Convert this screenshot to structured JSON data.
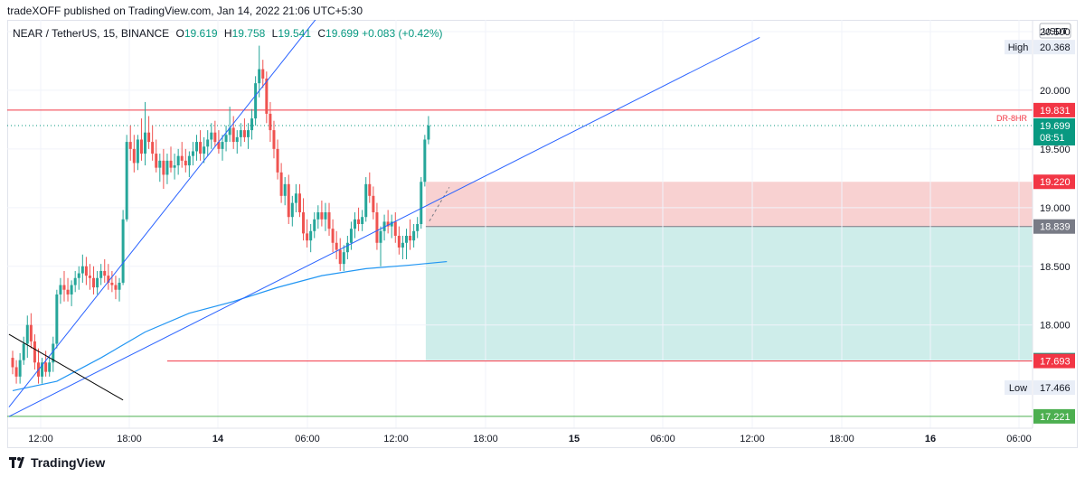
{
  "publisher": {
    "text": "tradeXOFF published on TradingView.com, Jan 14, 2022 21:06 UTC+5:30"
  },
  "legend": {
    "symbol": "NEAR / TetherUS, 15, BINANCE",
    "open_label": "O",
    "open": "19.619",
    "high_label": "H",
    "high": "19.758",
    "low_label": "L",
    "low": "19.541",
    "close_label": "C",
    "close": "19.699",
    "change": "+0.083 (+0.42%)"
  },
  "currency_badge": "USDT",
  "brand": "TradingView",
  "colors": {
    "up": "#26a69a",
    "down": "#ef5350",
    "trendline": "#2962ff",
    "ma": "#2196f3",
    "resistance": "#f23645",
    "support": "#4caf50",
    "stop_zone": "#f7c9c9",
    "target_zone": "#c9ebe8"
  },
  "chart_data": {
    "type": "candlestick",
    "x_axis": {
      "ticks": [
        "12:00",
        "18:00",
        "14",
        "06:00",
        "12:00",
        "18:00",
        "15",
        "06:00",
        "12:00",
        "18:00",
        "16",
        "06:00"
      ],
      "bold_ticks": [
        "14",
        "15",
        "16"
      ]
    },
    "y_axis": {
      "ticks": [
        "20.500",
        "20.000",
        "19.500",
        "19.000",
        "18.500",
        "18.000"
      ],
      "range": [
        17.12,
        20.6
      ],
      "position": "right"
    },
    "price_labels": [
      {
        "text": "19.831",
        "value": 19.831,
        "color": "#f23645"
      },
      {
        "text": "19.699",
        "value": 19.699,
        "color": "#089981",
        "countdown": "08:51"
      },
      {
        "text": "19.220",
        "value": 19.22,
        "color": "#f23645"
      },
      {
        "text": "18.839",
        "value": 18.839,
        "color": "#787b86"
      },
      {
        "text": "17.700",
        "value": 17.7,
        "color": "#089981"
      },
      {
        "text": "17.693",
        "value": 17.693,
        "color": "#f23645"
      },
      {
        "text": "17.221",
        "value": 17.221,
        "color": "#4caf50"
      }
    ],
    "range_labels": [
      {
        "name": "High",
        "text": "20.368",
        "value": 20.368
      },
      {
        "name": "Low",
        "text": "17.466",
        "value": 17.466
      }
    ],
    "horizontal_lines": [
      {
        "value": 19.831,
        "label": "DR-8HR",
        "color": "#f23645",
        "style": "solid"
      },
      {
        "value": 19.699,
        "color": "#089981",
        "style": "dotted"
      },
      {
        "value": 17.693,
        "color": "#f23645",
        "style": "solid",
        "start_bar": 42
      },
      {
        "value": 17.221,
        "color": "#4caf50",
        "style": "solid"
      }
    ],
    "position": {
      "side": "long",
      "start_bar": 113,
      "entry": 18.839,
      "stop": 19.22,
      "target": 17.7
    },
    "trendlines": [
      {
        "from": [
          -1,
          17.3
        ],
        "to": [
          110,
          21.7
        ],
        "color": "#2962ff"
      },
      {
        "from": [
          -1,
          17.22
        ],
        "to": [
          203,
          20.45
        ],
        "color": "#2962ff"
      },
      {
        "from": [
          -1,
          17.92
        ],
        "to": [
          30,
          17.36
        ],
        "color": "#000000"
      }
    ],
    "moving_average": {
      "color": "#2196f3",
      "points": [
        [
          0,
          17.44
        ],
        [
          12,
          17.52
        ],
        [
          24,
          17.72
        ],
        [
          36,
          17.94
        ],
        [
          48,
          18.1
        ],
        [
          60,
          18.2
        ],
        [
          72,
          18.32
        ],
        [
          84,
          18.42
        ],
        [
          96,
          18.48
        ],
        [
          108,
          18.51
        ],
        [
          118,
          18.54
        ]
      ]
    },
    "candles": [
      [
        17.72,
        17.78,
        17.58,
        17.64
      ],
      [
        17.64,
        17.7,
        17.5,
        17.56
      ],
      [
        17.56,
        17.76,
        17.5,
        17.7
      ],
      [
        17.7,
        17.9,
        17.66,
        17.84
      ],
      [
        17.84,
        18.08,
        17.72,
        18.0
      ],
      [
        18.0,
        18.1,
        17.8,
        17.86
      ],
      [
        17.86,
        17.92,
        17.62,
        17.68
      ],
      [
        17.68,
        17.8,
        17.5,
        17.56
      ],
      [
        17.56,
        17.72,
        17.5,
        17.68
      ],
      [
        17.68,
        17.78,
        17.56,
        17.6
      ],
      [
        17.6,
        17.72,
        17.56,
        17.68
      ],
      [
        17.68,
        17.9,
        17.6,
        17.84
      ],
      [
        17.84,
        18.3,
        17.8,
        18.26
      ],
      [
        18.26,
        18.4,
        18.18,
        18.34
      ],
      [
        18.34,
        18.46,
        18.2,
        18.3
      ],
      [
        18.3,
        18.4,
        18.2,
        18.26
      ],
      [
        18.26,
        18.38,
        18.16,
        18.34
      ],
      [
        18.34,
        18.46,
        18.28,
        18.4
      ],
      [
        18.4,
        18.5,
        18.3,
        18.44
      ],
      [
        18.44,
        18.6,
        18.36,
        18.5
      ],
      [
        18.5,
        18.58,
        18.34,
        18.42
      ],
      [
        18.42,
        18.52,
        18.3,
        18.4
      ],
      [
        18.4,
        18.5,
        18.26,
        18.32
      ],
      [
        18.32,
        18.46,
        18.26,
        18.4
      ],
      [
        18.4,
        18.52,
        18.34,
        18.46
      ],
      [
        18.46,
        18.56,
        18.36,
        18.42
      ],
      [
        18.42,
        18.52,
        18.3,
        18.36
      ],
      [
        18.36,
        18.46,
        18.28,
        18.34
      ],
      [
        18.34,
        18.42,
        18.22,
        18.3
      ],
      [
        18.3,
        18.4,
        18.2,
        18.36
      ],
      [
        18.36,
        18.98,
        18.34,
        18.9
      ],
      [
        18.9,
        19.62,
        18.88,
        19.56
      ],
      [
        19.56,
        19.7,
        19.4,
        19.5
      ],
      [
        19.5,
        19.62,
        19.3,
        19.38
      ],
      [
        19.38,
        19.62,
        19.32,
        19.58
      ],
      [
        19.58,
        19.76,
        19.4,
        19.46
      ],
      [
        19.46,
        19.9,
        19.36,
        19.64
      ],
      [
        19.64,
        19.78,
        19.5,
        19.56
      ],
      [
        19.56,
        19.7,
        19.4,
        19.46
      ],
      [
        19.46,
        19.58,
        19.3,
        19.34
      ],
      [
        19.34,
        19.46,
        19.22,
        19.4
      ],
      [
        19.4,
        19.5,
        19.16,
        19.28
      ],
      [
        19.28,
        19.46,
        19.2,
        19.4
      ],
      [
        19.4,
        19.52,
        19.3,
        19.34
      ],
      [
        19.34,
        19.46,
        19.24,
        19.36
      ],
      [
        19.36,
        19.5,
        19.28,
        19.44
      ],
      [
        19.44,
        19.56,
        19.34,
        19.4
      ],
      [
        19.4,
        19.5,
        19.3,
        19.36
      ],
      [
        19.36,
        19.48,
        19.26,
        19.44
      ],
      [
        19.44,
        19.56,
        19.36,
        19.48
      ],
      [
        19.48,
        19.62,
        19.4,
        19.56
      ],
      [
        19.56,
        19.66,
        19.4,
        19.46
      ],
      [
        19.46,
        19.6,
        19.38,
        19.52
      ],
      [
        19.52,
        19.66,
        19.44,
        19.58
      ],
      [
        19.58,
        19.72,
        19.5,
        19.64
      ],
      [
        19.64,
        19.74,
        19.52,
        19.56
      ],
      [
        19.56,
        19.66,
        19.46,
        19.5
      ],
      [
        19.5,
        19.62,
        19.4,
        19.56
      ],
      [
        19.56,
        19.7,
        19.48,
        19.62
      ],
      [
        19.62,
        19.86,
        19.56,
        19.68
      ],
      [
        19.68,
        19.78,
        19.5,
        19.56
      ],
      [
        19.56,
        19.66,
        19.46,
        19.6
      ],
      [
        19.6,
        19.72,
        19.52,
        19.66
      ],
      [
        19.66,
        19.76,
        19.56,
        19.6
      ],
      [
        19.6,
        19.72,
        19.5,
        19.66
      ],
      [
        19.66,
        19.84,
        19.58,
        19.76
      ],
      [
        19.76,
        20.12,
        19.7,
        20.06
      ],
      [
        20.06,
        20.38,
        19.94,
        20.18
      ],
      [
        20.18,
        20.26,
        20.02,
        20.1
      ],
      [
        20.1,
        20.16,
        19.72,
        19.8
      ],
      [
        19.8,
        19.9,
        19.56,
        19.66
      ],
      [
        19.66,
        19.74,
        19.42,
        19.5
      ],
      [
        19.5,
        19.58,
        19.24,
        19.3
      ],
      [
        19.3,
        19.38,
        19.04,
        19.1
      ],
      [
        19.1,
        19.26,
        19.02,
        19.2
      ],
      [
        19.2,
        19.28,
        18.86,
        18.92
      ],
      [
        18.92,
        19.1,
        18.84,
        19.04
      ],
      [
        19.04,
        19.2,
        18.96,
        19.12
      ],
      [
        19.12,
        19.2,
        18.92,
        18.96
      ],
      [
        18.96,
        19.08,
        18.72,
        18.78
      ],
      [
        18.78,
        18.9,
        18.66,
        18.72
      ],
      [
        18.72,
        18.86,
        18.62,
        18.8
      ],
      [
        18.8,
        18.96,
        18.74,
        18.9
      ],
      [
        18.9,
        19.02,
        18.82,
        18.96
      ],
      [
        18.96,
        19.06,
        18.84,
        18.9
      ],
      [
        18.9,
        19.04,
        18.8,
        18.96
      ],
      [
        18.96,
        19.04,
        18.76,
        18.82
      ],
      [
        18.82,
        18.9,
        18.62,
        18.7
      ],
      [
        18.7,
        18.8,
        18.56,
        18.64
      ],
      [
        18.64,
        18.74,
        18.46,
        18.52
      ],
      [
        18.52,
        18.68,
        18.46,
        18.62
      ],
      [
        18.62,
        18.76,
        18.56,
        18.7
      ],
      [
        18.7,
        18.88,
        18.64,
        18.82
      ],
      [
        18.82,
        18.96,
        18.74,
        18.9
      ],
      [
        18.9,
        19.0,
        18.8,
        18.86
      ],
      [
        18.86,
        18.98,
        18.8,
        18.92
      ],
      [
        18.92,
        19.26,
        18.88,
        19.2
      ],
      [
        19.2,
        19.3,
        19.04,
        19.1
      ],
      [
        19.1,
        19.18,
        18.9,
        18.96
      ],
      [
        18.96,
        19.04,
        18.64,
        18.7
      ],
      [
        18.7,
        18.84,
        18.5,
        18.8
      ],
      [
        18.8,
        18.94,
        18.72,
        18.88
      ],
      [
        18.88,
        18.98,
        18.78,
        18.84
      ],
      [
        18.84,
        18.94,
        18.74,
        18.88
      ],
      [
        18.88,
        18.96,
        18.7,
        18.76
      ],
      [
        18.76,
        18.84,
        18.6,
        18.66
      ],
      [
        18.66,
        18.76,
        18.56,
        18.7
      ],
      [
        18.7,
        18.82,
        18.56,
        18.76
      ],
      [
        18.76,
        18.9,
        18.64,
        18.72
      ],
      [
        18.72,
        18.86,
        18.66,
        18.8
      ],
      [
        18.8,
        18.92,
        18.74,
        18.86
      ],
      [
        18.86,
        19.26,
        18.82,
        19.22
      ],
      [
        19.22,
        19.62,
        19.18,
        19.58
      ],
      [
        19.58,
        19.78,
        19.54,
        19.7
      ]
    ]
  }
}
